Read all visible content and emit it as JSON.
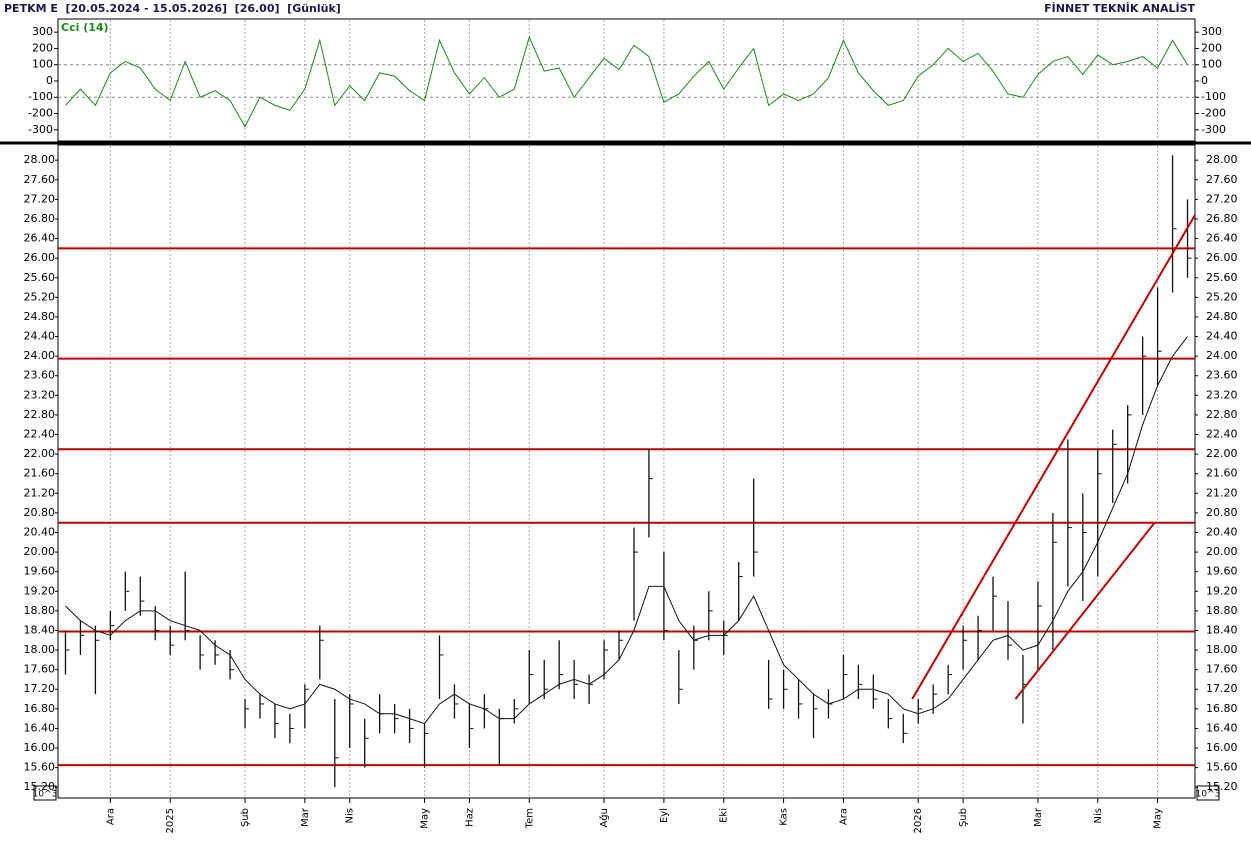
{
  "header": {
    "left": "PETKM E  [20.05.2024 - 15.05.2026]  [26.00]  [Günlük]",
    "right": "FİNNET TEKNİK ANALİST",
    "scale_note": "10^3"
  },
  "chart_data": [
    {
      "type": "line",
      "title": "Cci (14)",
      "color": "#1a8a1a",
      "values": [
        -150,
        -50,
        -150,
        50,
        120,
        80,
        -50,
        -120,
        120,
        -100,
        -60,
        -120,
        -280,
        -100,
        -150,
        -180,
        -50,
        250,
        -150,
        -30,
        -120,
        50,
        30,
        -60,
        -120,
        250,
        50,
        -80,
        20,
        -100,
        -50,
        270,
        60,
        80,
        -100,
        20,
        140,
        70,
        220,
        150,
        -130,
        -80,
        30,
        120,
        -50,
        80,
        200,
        -150,
        -80,
        -120,
        -80,
        20,
        250,
        50,
        -60,
        -150,
        -120,
        30,
        100,
        200,
        120,
        170,
        60,
        -80,
        -100,
        40,
        120,
        150,
        40,
        160,
        100,
        120,
        150,
        80,
        250,
        100
      ],
      "ylim": [
        -369,
        381
      ],
      "yticks": [
        300,
        200,
        100,
        0,
        -100,
        -200,
        -300
      ],
      "levels": [
        100,
        -100
      ]
    },
    {
      "type": "ohlc",
      "color": "#111111",
      "ma_color": "#111111",
      "line_color": "#c00000",
      "categories": [
        null,
        null,
        null,
        "Ara",
        null,
        null,
        null,
        "2025",
        null,
        null,
        null,
        null,
        "Şub",
        null,
        null,
        null,
        "Mar",
        null,
        null,
        "Nis",
        null,
        null,
        null,
        null,
        "May",
        null,
        null,
        "Haz",
        null,
        null,
        null,
        "Tem",
        null,
        null,
        null,
        null,
        "Ağu",
        null,
        null,
        null,
        "Eyl",
        null,
        null,
        null,
        "Eki",
        null,
        null,
        null,
        "Kas",
        null,
        null,
        null,
        "Ara",
        null,
        null,
        null,
        null,
        "2026",
        null,
        null,
        "Şub",
        null,
        null,
        null,
        null,
        "Mar",
        null,
        null,
        null,
        "Nis",
        null,
        null,
        null,
        "May",
        null,
        null
      ],
      "high": [
        18.4,
        18.6,
        18.5,
        18.8,
        19.6,
        19.5,
        18.9,
        18.5,
        19.6,
        18.3,
        18.2,
        18.0,
        17.0,
        17.1,
        16.9,
        16.7,
        17.3,
        18.5,
        17.0,
        17.1,
        16.6,
        17.1,
        16.9,
        16.8,
        16.5,
        18.3,
        17.3,
        16.9,
        17.1,
        16.8,
        17.0,
        18.0,
        17.8,
        18.2,
        17.8,
        17.5,
        18.2,
        18.4,
        20.5,
        22.1,
        20.0,
        18.0,
        18.5,
        19.2,
        18.6,
        19.8,
        21.5,
        17.8,
        17.6,
        17.4,
        17.1,
        17.2,
        17.9,
        17.7,
        17.5,
        17.0,
        16.7,
        17.0,
        17.3,
        17.7,
        18.5,
        18.7,
        19.5,
        19.0,
        17.9,
        19.4,
        20.8,
        22.3,
        21.2,
        22.1,
        22.5,
        23.0,
        24.4,
        25.4,
        28.1,
        27.2
      ],
      "low": [
        17.5,
        17.9,
        17.1,
        18.2,
        18.8,
        18.7,
        18.2,
        17.9,
        18.2,
        17.6,
        17.7,
        17.4,
        16.4,
        16.6,
        16.2,
        16.1,
        16.4,
        17.4,
        15.2,
        16.0,
        15.6,
        16.3,
        16.3,
        16.1,
        15.6,
        17.0,
        16.6,
        16.0,
        16.4,
        15.65,
        16.5,
        16.9,
        17.0,
        17.2,
        17.0,
        16.9,
        17.4,
        17.8,
        18.6,
        20.3,
        18.2,
        16.9,
        17.6,
        18.2,
        17.9,
        18.6,
        19.5,
        16.8,
        16.8,
        16.6,
        16.2,
        16.6,
        17.0,
        17.0,
        16.8,
        16.4,
        16.1,
        16.5,
        16.7,
        17.1,
        17.6,
        17.8,
        18.4,
        17.8,
        16.5,
        17.6,
        18.0,
        19.3,
        19.0,
        19.5,
        21.0,
        21.4,
        22.8,
        23.4,
        25.3,
        25.6
      ],
      "close": [
        18.0,
        18.3,
        18.2,
        18.5,
        19.2,
        19.0,
        18.4,
        18.1,
        18.4,
        17.9,
        17.9,
        17.6,
        16.8,
        16.9,
        16.5,
        16.4,
        17.2,
        18.2,
        15.8,
        16.9,
        16.2,
        16.7,
        16.6,
        16.4,
        16.3,
        17.9,
        16.9,
        16.4,
        16.8,
        16.6,
        16.8,
        17.5,
        17.2,
        17.5,
        17.3,
        17.3,
        18.0,
        18.2,
        20.0,
        21.5,
        18.4,
        17.2,
        18.2,
        18.8,
        18.3,
        19.5,
        20.0,
        17.0,
        17.2,
        16.9,
        16.8,
        16.9,
        17.5,
        17.3,
        17.0,
        16.6,
        16.3,
        16.8,
        17.1,
        17.5,
        18.2,
        18.4,
        19.1,
        18.1,
        17.3,
        18.9,
        20.2,
        20.5,
        20.4,
        21.6,
        22.2,
        22.8,
        24.0,
        24.1,
        26.6,
        26.0
      ],
      "ma": [
        18.9,
        18.6,
        18.4,
        18.3,
        18.6,
        18.8,
        18.8,
        18.6,
        18.5,
        18.4,
        18.1,
        17.9,
        17.4,
        17.1,
        16.9,
        16.8,
        16.9,
        17.3,
        17.2,
        17.0,
        16.9,
        16.7,
        16.7,
        16.6,
        16.5,
        16.9,
        17.1,
        16.9,
        16.8,
        16.6,
        16.6,
        16.9,
        17.1,
        17.3,
        17.4,
        17.3,
        17.5,
        17.8,
        18.4,
        19.3,
        19.3,
        18.6,
        18.2,
        18.3,
        18.3,
        18.6,
        19.1,
        18.4,
        17.7,
        17.4,
        17.1,
        16.9,
        17.0,
        17.2,
        17.2,
        17.1,
        16.8,
        16.7,
        16.8,
        17.0,
        17.4,
        17.8,
        18.2,
        18.3,
        18.0,
        18.1,
        18.6,
        19.2,
        19.6,
        20.2,
        20.9,
        21.6,
        22.6,
        23.4,
        24.0,
        24.4
      ],
      "hlines": [
        26.2,
        23.95,
        22.1,
        20.6,
        18.38,
        15.65
      ],
      "trendlines": [
        {
          "x": [
            56.6,
            75.5
          ],
          "y": [
            17.0,
            26.88
          ]
        },
        {
          "x": [
            63.5,
            72.8
          ],
          "y": [
            17.0,
            20.6
          ]
        }
      ],
      "ylim": [
        14.98,
        28.31
      ],
      "yticks": [
        {
          "value": 15.2,
          "label": "15.20"
        },
        {
          "value": 15.6,
          "label": "15.60"
        },
        {
          "value": 16.0,
          "label": "16.00"
        },
        {
          "value": 16.4,
          "label": "16.40"
        },
        {
          "value": 16.8,
          "label": "16.80"
        },
        {
          "value": 17.2,
          "label": "17.20"
        },
        {
          "value": 17.6,
          "label": "17.60"
        },
        {
          "value": 18.0,
          "label": "18.00"
        },
        {
          "value": 18.4,
          "label": "18.40"
        },
        {
          "value": 18.8,
          "label": "18.80"
        },
        {
          "value": 19.2,
          "label": "19.20"
        },
        {
          "value": 19.6,
          "label": "19.60"
        },
        {
          "value": 20.0,
          "label": "20.00"
        },
        {
          "value": 20.4,
          "label": "20.40"
        },
        {
          "value": 20.8,
          "label": "20.80"
        },
        {
          "value": 21.2,
          "label": "21.20"
        },
        {
          "value": 21.6,
          "label": "21.60"
        },
        {
          "value": 22.0,
          "label": "22.00"
        },
        {
          "value": 22.4,
          "label": "22.40"
        },
        {
          "value": 22.8,
          "label": "22.80"
        },
        {
          "value": 23.2,
          "label": "23.20"
        },
        {
          "value": 23.6,
          "label": "23.60"
        },
        {
          "value": 24.0,
          "label": "24.00"
        },
        {
          "value": 24.4,
          "label": "24.40"
        },
        {
          "value": 24.8,
          "label": "24.80"
        },
        {
          "value": 25.2,
          "label": "25.20"
        },
        {
          "value": 25.6,
          "label": "25.60"
        },
        {
          "value": 26.0,
          "label": "26.00"
        },
        {
          "value": 26.4,
          "label": "26.40"
        },
        {
          "value": 26.8,
          "label": "26.80"
        },
        {
          "value": 27.2,
          "label": "27.20"
        },
        {
          "value": 27.6,
          "label": "27.60"
        },
        {
          "value": 28.0,
          "label": "28.00"
        }
      ]
    }
  ]
}
